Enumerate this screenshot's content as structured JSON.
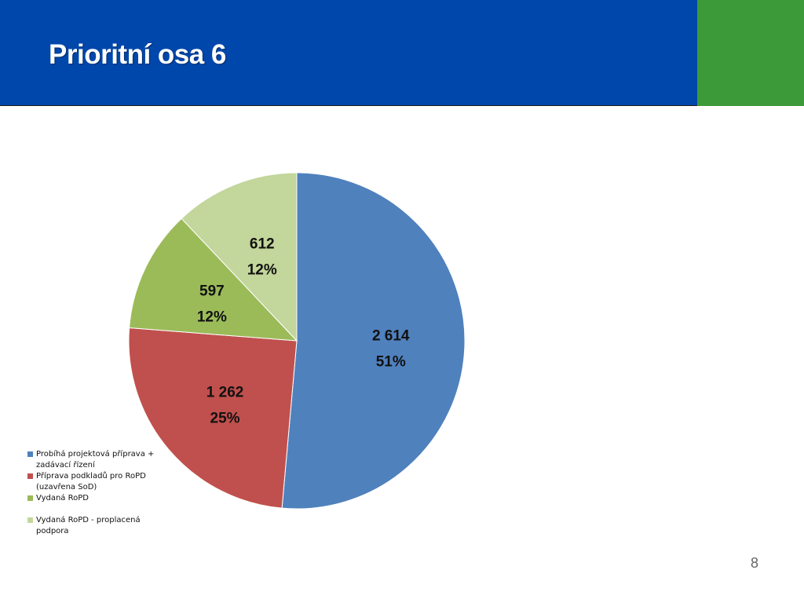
{
  "slide": {
    "title": "Prioritní osa 6",
    "page_number": "8"
  },
  "colors": {
    "header": "#0047ab",
    "accent": "#3c9a38"
  },
  "chart_data": {
    "type": "pie",
    "title": "",
    "legend_position": "bottom-left",
    "start_angle": "12 o'clock",
    "direction": "clockwise",
    "slices": [
      {
        "name": "Probíhá projektová příprava + zadávací řízení",
        "value": 2614,
        "value_label": "2 614",
        "percent": 51,
        "percent_label": "51%",
        "color": "#4f81bd"
      },
      {
        "name": "Příprava podkladů pro RoPD (uzavřena SoD)",
        "value": 1262,
        "value_label": "1 262",
        "percent": 25,
        "percent_label": "25%",
        "color": "#c0504d"
      },
      {
        "name": "Vydaná RoPD",
        "value": 597,
        "value_label": "597",
        "percent": 12,
        "percent_label": "12%",
        "color": "#9bbb59"
      },
      {
        "name": "Vydaná RoPD - proplacená podpora",
        "value": 612,
        "value_label": "612",
        "percent": 12,
        "percent_label": "12%",
        "color": "#c3d69b"
      }
    ]
  }
}
